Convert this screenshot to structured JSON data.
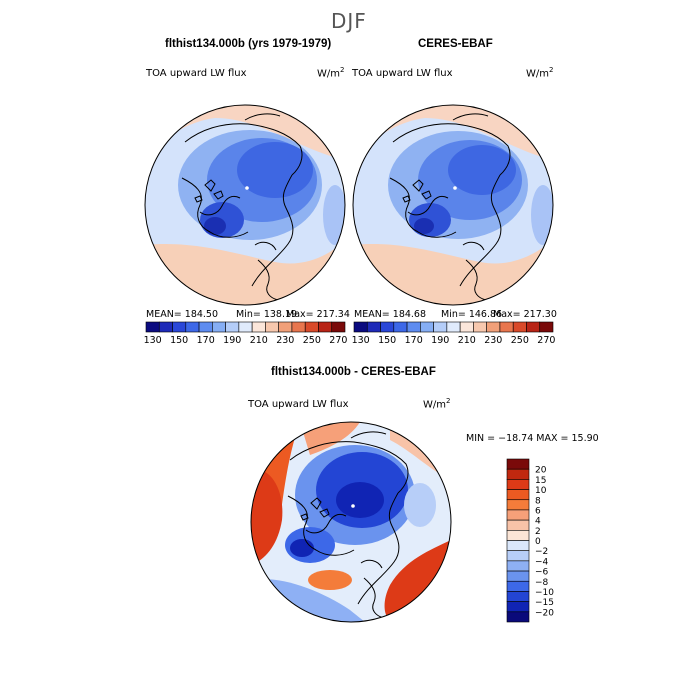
{
  "page": {
    "title": "DJF"
  },
  "panels": [
    {
      "id": "model",
      "header": "flthist134.000b (yrs 1979-1979)",
      "field_label": "TOA upward LW flux",
      "units_base": "W/m",
      "units_exp": "2",
      "stats": {
        "mean": "MEAN= 184.50",
        "min": "Min= 138.19",
        "max": "Max= 217.34"
      }
    },
    {
      "id": "obs",
      "header": "CERES-EBAF",
      "field_label": "TOA upward LW flux",
      "units_base": "W/m",
      "units_exp": "2",
      "stats": {
        "mean": "MEAN= 184.68",
        "min": "Min= 146.86",
        "max": "Max= 217.30"
      }
    },
    {
      "id": "diff",
      "header": "flthist134.000b - CERES-EBAF",
      "field_label": "TOA upward LW flux",
      "units_base": "W/m",
      "units_exp": "2",
      "minmax": "MIN = −18.74 MAX =  15.90"
    }
  ],
  "chart_data": [
    {
      "type": "heatmap",
      "projection": "north-polar-stereographic",
      "title": "flthist134.000b (yrs 1979-1979)",
      "variable": "TOA upward LW flux",
      "units": "W/m^2",
      "mean": 184.5,
      "min": 138.19,
      "max": 217.34,
      "colorbar": {
        "labels": [
          "130",
          "150",
          "170",
          "190",
          "210",
          "230",
          "250",
          "270"
        ],
        "colors": [
          "#0b0b80",
          "#1e2ab8",
          "#2a47d8",
          "#3d68e8",
          "#5e8cf0",
          "#86aef4",
          "#b4cdf8",
          "#e0ebfc",
          "#fbe6da",
          "#f7c8ae",
          "#f1a079",
          "#e8764e",
          "#d94a2a",
          "#b82416",
          "#7a0a0a"
        ]
      }
    },
    {
      "type": "heatmap",
      "projection": "north-polar-stereographic",
      "title": "CERES-EBAF",
      "variable": "TOA upward LW flux",
      "units": "W/m^2",
      "mean": 184.68,
      "min": 146.86,
      "max": 217.3,
      "colorbar": {
        "labels": [
          "130",
          "150",
          "170",
          "190",
          "210",
          "230",
          "250",
          "270"
        ],
        "colors": [
          "#0b0b80",
          "#1e2ab8",
          "#2a47d8",
          "#3d68e8",
          "#5e8cf0",
          "#86aef4",
          "#b4cdf8",
          "#e0ebfc",
          "#fbe6da",
          "#f7c8ae",
          "#f1a079",
          "#e8764e",
          "#d94a2a",
          "#b82416",
          "#7a0a0a"
        ]
      }
    },
    {
      "type": "heatmap",
      "projection": "north-polar-stereographic",
      "title": "flthist134.000b - CERES-EBAF",
      "variable": "TOA upward LW flux",
      "units": "W/m^2",
      "min": -18.74,
      "max": 15.9,
      "colorbar": {
        "labels": [
          "20",
          "15",
          "10",
          "8",
          "6",
          "4",
          "2",
          "0",
          "−2",
          "−4",
          "−6",
          "−8",
          "−10",
          "−15",
          "−20"
        ],
        "colors": [
          "#7a0a0a",
          "#c0280f",
          "#dd3a17",
          "#ec5a22",
          "#f47c3a",
          "#f6a079",
          "#f8c3a8",
          "#fbe5d6",
          "#dae7fb",
          "#b7cef8",
          "#8eb0f4",
          "#6a93ee",
          "#3d68e8",
          "#2345d4",
          "#1024b4",
          "#0a0a7a"
        ]
      }
    }
  ]
}
